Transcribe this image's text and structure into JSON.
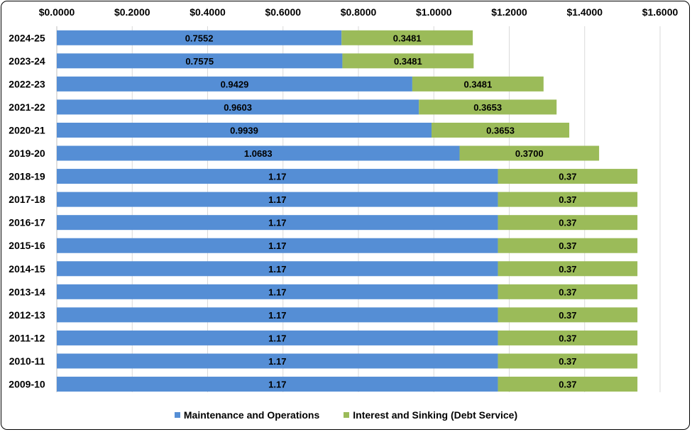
{
  "chart_data": {
    "type": "bar",
    "orientation": "horizontal",
    "stacked": true,
    "title": "",
    "xlabel": "",
    "ylabel": "",
    "xlim": [
      0,
      1.6
    ],
    "x_ticks": [
      "$0.0000",
      "$0.2000",
      "$0.4000",
      "$0.6000",
      "$0.8000",
      "$1.0000",
      "$1.2000",
      "$1.4000",
      "$1.6000"
    ],
    "x_tick_values": [
      0,
      0.2,
      0.4,
      0.6,
      0.8,
      1.0,
      1.2,
      1.4,
      1.6
    ],
    "x_axis_position": "top",
    "grid": "vertical",
    "legend_position": "bottom",
    "categories": [
      "2024-25",
      "2023-24",
      "2022-23",
      "2021-22",
      "2020-21",
      "2019-20",
      "2018-19",
      "2017-18",
      "2016-17",
      "2015-16",
      "2014-15",
      "2013-14",
      "2012-13",
      "2011-12",
      "2010-11",
      "2009-10"
    ],
    "series": [
      {
        "name": "Maintenance and Operations",
        "color": "#558ED5",
        "values": [
          0.7552,
          0.7575,
          0.9429,
          0.9603,
          0.9939,
          1.0683,
          1.17,
          1.17,
          1.17,
          1.17,
          1.17,
          1.17,
          1.17,
          1.17,
          1.17,
          1.17
        ],
        "labels": [
          "0.7552",
          "0.7575",
          "0.9429",
          "0.9603",
          "0.9939",
          "1.0683",
          "1.17",
          "1.17",
          "1.17",
          "1.17",
          "1.17",
          "1.17",
          "1.17",
          "1.17",
          "1.17",
          "1.17"
        ]
      },
      {
        "name": "Interest and Sinking (Debt Service)",
        "color": "#9BBB59",
        "values": [
          0.3481,
          0.3481,
          0.3481,
          0.3653,
          0.3653,
          0.37,
          0.37,
          0.37,
          0.37,
          0.37,
          0.37,
          0.37,
          0.37,
          0.37,
          0.37,
          0.37
        ],
        "labels": [
          "0.3481",
          "0.3481",
          "0.3481",
          "0.3653",
          "0.3653",
          "0.3700",
          "0.37",
          "0.37",
          "0.37",
          "0.37",
          "0.37",
          "0.37",
          "0.37",
          "0.37",
          "0.37",
          "0.37"
        ]
      }
    ]
  }
}
